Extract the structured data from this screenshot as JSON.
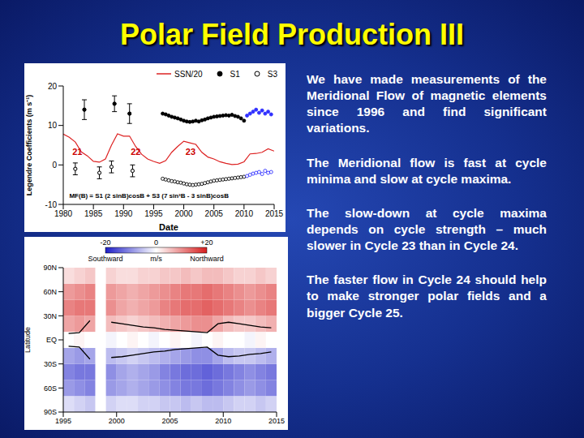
{
  "slide": {
    "title": "Polar Field Production III",
    "text": [
      "We have made measurements of the Meridional Flow of magnetic elements since 1996 and find significant variations.",
      "The Meridional flow is fast at cycle minima and slow at cycle maxima.",
      "The slow-down at cycle maxima depends on cycle strength – much slower in Cycle 23 than in Cycle 24.",
      "The faster flow in Cycle 24 should help to make stronger polar fields and a bigger Cycle 25."
    ]
  },
  "chart_data": [
    {
      "type": "scatter",
      "x_label": "Date",
      "y_label": "Legendre Coefficients (m s⁻¹)",
      "xlim": [
        1980,
        2015
      ],
      "xticks": [
        1980,
        1985,
        1990,
        1995,
        2000,
        2005,
        2010,
        2015
      ],
      "ylim": [
        -10,
        20
      ],
      "yticks": [
        -10,
        0,
        10,
        20
      ],
      "legend": "top right",
      "series": [
        {
          "name": "SSN/20",
          "type": "line",
          "color": "#dd2222",
          "x": [
            1980,
            1981,
            1982,
            1983,
            1984,
            1985,
            1986,
            1987,
            1988,
            1989,
            1990,
            1991,
            1992,
            1993,
            1994,
            1995,
            1996,
            1997,
            1998,
            1999,
            2000,
            2001,
            2002,
            2003,
            2004,
            2005,
            2006,
            2007,
            2008,
            2009,
            2010,
            2011,
            2012,
            2013,
            2014,
            2015
          ],
          "values": [
            7.8,
            7.0,
            5.8,
            3.3,
            2.3,
            0.9,
            0.7,
            1.5,
            5.0,
            7.9,
            7.3,
            7.3,
            4.7,
            2.7,
            1.5,
            0.9,
            0.4,
            1.1,
            3.2,
            4.7,
            6.0,
            5.6,
            5.2,
            3.2,
            2.0,
            1.5,
            0.8,
            0.4,
            0.1,
            0.2,
            0.8,
            2.8,
            2.9,
            3.2,
            4.1,
            3.5
          ]
        },
        {
          "name": "S1",
          "type": "scatter",
          "marker": "filled circle",
          "color": "#000000",
          "x": [
            1983.5,
            1988.5,
            1991,
            1996.5,
            1997,
            1997.5,
            1998,
            1998.5,
            1999,
            1999.5,
            2000,
            2000.5,
            2001,
            2001.5,
            2002,
            2002.5,
            2003,
            2003.5,
            2004,
            2004.5,
            2005,
            2005.5,
            2006,
            2006.5,
            2007,
            2007.5,
            2008,
            2008.5,
            2009,
            2009.5,
            2010,
            2010.5,
            2011,
            2011.5,
            2012,
            2012.5,
            2013,
            2013.5,
            2014,
            2014.5
          ],
          "values": [
            14,
            15.5,
            13,
            13.0,
            12.8,
            12.5,
            12.2,
            12.0,
            11.8,
            11.5,
            11.2,
            11.0,
            10.9,
            11.0,
            11.2,
            11.0,
            11.3,
            11.5,
            11.8,
            12.0,
            12.2,
            12.3,
            12.4,
            12.5,
            12.6,
            12.5,
            12.7,
            12.4,
            12.2,
            11.8,
            11.2,
            12.5,
            13.0,
            13.5,
            14.0,
            13.2,
            13.8,
            13.0,
            13.5,
            12.8
          ],
          "error": [
            2.5,
            2,
            2.5,
            null,
            null,
            null,
            null,
            null,
            null,
            null,
            null,
            null,
            null,
            null,
            null,
            null,
            null,
            null,
            null,
            null,
            null,
            null,
            null,
            null,
            null,
            null,
            null,
            null,
            null,
            null,
            null,
            null,
            null,
            null,
            null,
            null,
            null,
            null,
            null,
            null
          ],
          "colors": [
            "#000000",
            "#000000",
            "#000000",
            "#000000",
            "#000000",
            "#000000",
            "#000000",
            "#000000",
            "#000000",
            "#000000",
            "#000000",
            "#000000",
            "#000000",
            "#000000",
            "#000000",
            "#000000",
            "#000000",
            "#000000",
            "#000000",
            "#000000",
            "#000000",
            "#000000",
            "#000000",
            "#000000",
            "#000000",
            "#000000",
            "#000000",
            "#000000",
            "#000000",
            "#000000",
            "#000000",
            "#3030ff",
            "#3030ff",
            "#3030ff",
            "#3030ff",
            "#3030ff",
            "#3030ff",
            "#3030ff",
            "#3030ff",
            "#3030ff"
          ]
        },
        {
          "name": "S3",
          "type": "scatter",
          "marker": "open circle",
          "color": "#000000",
          "x": [
            1982,
            1986,
            1988,
            1991.5,
            1996.5,
            1997,
            1997.5,
            1998,
            1998.5,
            1999,
            1999.5,
            2000,
            2000.5,
            2001,
            2001.5,
            2002,
            2002.5,
            2003,
            2003.5,
            2004,
            2004.5,
            2005,
            2005.5,
            2006,
            2006.5,
            2007,
            2007.5,
            2008,
            2008.5,
            2009,
            2009.5,
            2010,
            2010.5,
            2011,
            2011.5,
            2012,
            2012.5,
            2013,
            2013.5,
            2014,
            2014.5
          ],
          "values": [
            -1,
            -2,
            -0.5,
            -1.5,
            -3.5,
            -3.7,
            -3.9,
            -4.1,
            -4.2,
            -4.4,
            -4.5,
            -4.7,
            -4.9,
            -5.0,
            -5.1,
            -5.0,
            -4.9,
            -4.8,
            -4.6,
            -4.4,
            -4.2,
            -4.0,
            -3.9,
            -3.8,
            -3.7,
            -3.6,
            -3.5,
            -3.4,
            -3.3,
            -3.2,
            -3.1,
            -3.0,
            -2.8,
            -2.5,
            -2.2,
            -2.0,
            -1.8,
            -2.3,
            -1.5,
            -2.0,
            -1.8
          ],
          "error": [
            1.5,
            1.5,
            1.5,
            1.5,
            null,
            null,
            null,
            null,
            null,
            null,
            null,
            null,
            null,
            null,
            null,
            null,
            null,
            null,
            null,
            null,
            null,
            null,
            null,
            null,
            null,
            null,
            null,
            null,
            null,
            null,
            null,
            null,
            null,
            null,
            null,
            null,
            null,
            null,
            null,
            null,
            null
          ],
          "colors": [
            "#000000",
            "#000000",
            "#000000",
            "#000000",
            "#000000",
            "#000000",
            "#000000",
            "#000000",
            "#000000",
            "#000000",
            "#000000",
            "#000000",
            "#000000",
            "#000000",
            "#000000",
            "#000000",
            "#000000",
            "#000000",
            "#000000",
            "#000000",
            "#000000",
            "#000000",
            "#000000",
            "#000000",
            "#000000",
            "#000000",
            "#000000",
            "#000000",
            "#000000",
            "#000000",
            "#000000",
            "#000000",
            "#3030ff",
            "#3030ff",
            "#3030ff",
            "#3030ff",
            "#3030ff",
            "#3030ff",
            "#3030ff",
            "#3030ff",
            "#3030ff"
          ]
        }
      ],
      "annotations": [
        {
          "text": "21",
          "x": 1981.5,
          "y": 2.5,
          "color": "#cc0000"
        },
        {
          "text": "22",
          "x": 1991.2,
          "y": 2.5,
          "color": "#cc0000"
        },
        {
          "text": "23",
          "x": 2000.3,
          "y": 2.5,
          "color": "#cc0000"
        },
        {
          "text": "MF(B) = S1 (2 sinB)cosB + S3 (7 sin³B - 3 sinB)cosB",
          "x": 1981,
          "y": -8.3,
          "color": "#000000"
        }
      ]
    },
    {
      "type": "heatmap",
      "y_label": "Latitude",
      "xlim": [
        1995,
        2015
      ],
      "xticks": [
        1995,
        2000,
        2005,
        2010,
        2015
      ],
      "ylim": [
        -90,
        90
      ],
      "yticks": [
        {
          "value": 90,
          "label": "90N"
        },
        {
          "value": 60,
          "label": "60N"
        },
        {
          "value": 30,
          "label": "30N"
        },
        {
          "value": 0,
          "label": "EQ"
        },
        {
          "value": -30,
          "label": "30S"
        },
        {
          "value": -60,
          "label": "60S"
        },
        {
          "value": -90,
          "label": "90S"
        }
      ],
      "x_bins": [
        1995,
        1996,
        1997,
        1998,
        1999,
        2000,
        2001,
        2002,
        2003,
        2004,
        2005,
        2006,
        2007,
        2008,
        2009,
        2010,
        2011,
        2012,
        2013,
        2014,
        2015
      ],
      "y_bins": [
        -90,
        -70,
        -50,
        -30,
        -10,
        10,
        30,
        50,
        70,
        90
      ],
      "cells": [
        [
          -3,
          -4,
          -5,
          null,
          -4,
          -3,
          -3,
          -4,
          -4,
          -5,
          -5,
          -6,
          -5,
          -6,
          -6,
          -5,
          -4,
          -4,
          -5,
          -4
        ],
        [
          -9,
          -10,
          -11,
          null,
          -9,
          -8,
          -7,
          -8,
          -9,
          -10,
          -11,
          -12,
          -12,
          -13,
          -12,
          -11,
          -10,
          -9,
          -10,
          -11
        ],
        [
          -11,
          -12,
          -12,
          null,
          -10,
          -8,
          -7,
          -8,
          -9,
          -11,
          -12,
          -13,
          -13,
          -14,
          -13,
          -12,
          -11,
          -10,
          -11,
          -12
        ],
        [
          -8,
          -9,
          -8,
          null,
          -6,
          -5,
          -4,
          -5,
          -6,
          -7,
          -8,
          -9,
          -10,
          -10,
          -8,
          -6,
          -5,
          -5,
          -6,
          -7
        ],
        [
          0,
          1,
          0,
          null,
          -1,
          0,
          1,
          0,
          -1,
          0,
          1,
          0,
          -1,
          0,
          1,
          0,
          0,
          -1,
          1,
          0
        ],
        [
          8,
          9,
          8,
          null,
          6,
          5,
          4,
          5,
          6,
          7,
          8,
          9,
          10,
          10,
          8,
          6,
          5,
          5,
          6,
          7
        ],
        [
          11,
          12,
          12,
          null,
          10,
          8,
          7,
          8,
          9,
          11,
          12,
          13,
          13,
          14,
          13,
          12,
          11,
          10,
          11,
          12
        ],
        [
          9,
          10,
          11,
          null,
          9,
          8,
          7,
          8,
          9,
          10,
          11,
          12,
          12,
          13,
          12,
          11,
          10,
          9,
          10,
          11
        ],
        [
          3,
          4,
          5,
          null,
          4,
          3,
          3,
          4,
          4,
          5,
          5,
          6,
          5,
          6,
          6,
          5,
          4,
          4,
          5,
          4
        ]
      ],
      "colorbar": {
        "range": [
          -20,
          20
        ],
        "ticks": [
          -20,
          0,
          {
            "value": 20,
            "label": "+20"
          }
        ],
        "label": "m/s",
        "low_label": "Southward",
        "high_label": "Northward"
      },
      "series": [
        {
          "type": "line",
          "color": "#000000",
          "x": [
            1995.5,
            1996.5,
            1997.5,
            1998.5,
            1999.5,
            2000.5,
            2001.5,
            2002.5,
            2003.5,
            2004.5,
            2005.5,
            2006.5,
            2007.5,
            2008.5,
            2009.5,
            2010.5,
            2011.5,
            2012.5,
            2013.5,
            2014.5
          ],
          "values": [
            8,
            9,
            24,
            null,
            22,
            20,
            18,
            16,
            15,
            13,
            12,
            11,
            10,
            9,
            20,
            22,
            20,
            18,
            16,
            15
          ]
        },
        {
          "type": "line",
          "color": "#000000",
          "x": [
            1995.5,
            1996.5,
            1997.5,
            1998.5,
            1999.5,
            2000.5,
            2001.5,
            2002.5,
            2003.5,
            2004.5,
            2005.5,
            2006.5,
            2007.5,
            2008.5,
            2009.5,
            2010.5,
            2011.5,
            2012.5,
            2013.5,
            2014.5
          ],
          "values": [
            -8,
            -9,
            -24,
            null,
            -22,
            -21,
            -19,
            -17,
            -15,
            -14,
            -12,
            -11,
            -10,
            -9,
            -19,
            -21,
            -20,
            -18,
            -17,
            -15
          ]
        }
      ]
    }
  ]
}
